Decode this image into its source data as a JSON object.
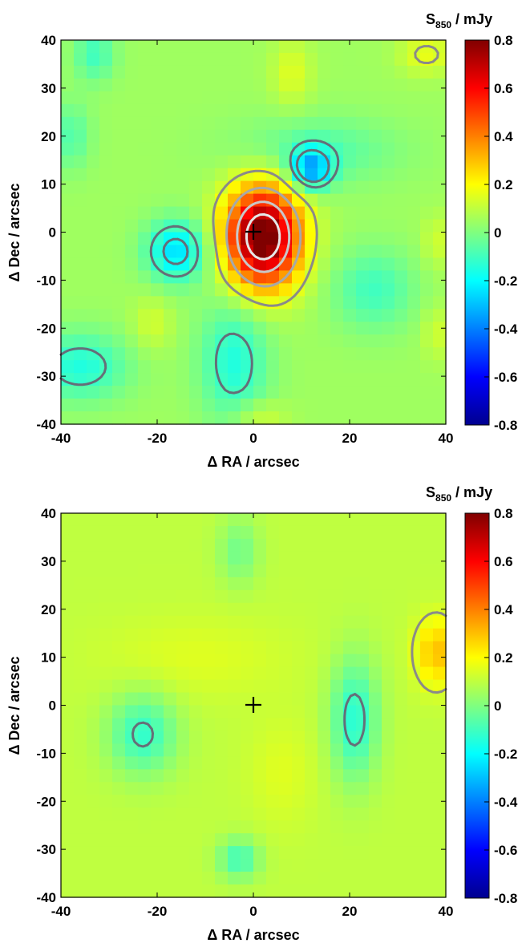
{
  "chart_data": [
    {
      "type": "heatmap",
      "xlabel": "Δ RA / arcsec",
      "ylabel": "Δ Dec / arcsec",
      "colorbar_label_main": "S",
      "colorbar_label_sub": "850",
      "colorbar_label_unit": " / mJy",
      "xlim": [
        -40,
        40
      ],
      "ylim": [
        -40,
        40
      ],
      "xticks": [
        -40,
        -20,
        0,
        20,
        40
      ],
      "yticks": [
        -40,
        -30,
        -20,
        -10,
        0,
        10,
        20,
        30,
        40
      ],
      "colorbar_range": [
        -0.8,
        0.8
      ],
      "colorbar_ticks": [
        0.8,
        0.6,
        0.4,
        0.2,
        0,
        -0.2,
        -0.4,
        -0.6,
        -0.8
      ],
      "grid": false,
      "colormap": "jet",
      "background_value": 0.05,
      "marker": {
        "x": 0,
        "y": 0,
        "symbol": "plus"
      },
      "features": [
        {
          "x": 2,
          "y": -1,
          "sx": 5.5,
          "sy": 7.5,
          "amp": 0.82
        },
        {
          "x": -16,
          "y": -4,
          "sx": 4.5,
          "sy": 4.5,
          "amp": -0.3
        },
        {
          "x": 12,
          "y": 13,
          "sx": 3,
          "sy": 3,
          "amp": -0.35
        },
        {
          "x": 13,
          "y": 17,
          "sx": 12,
          "sy": 5,
          "amp": -0.12
        },
        {
          "x": -33,
          "y": 37,
          "sx": 3,
          "sy": 4,
          "amp": -0.15
        },
        {
          "x": -38,
          "y": 20,
          "sx": 3,
          "sy": 5,
          "amp": -0.12
        },
        {
          "x": 25,
          "y": -12,
          "sx": 6,
          "sy": 6,
          "amp": -0.15
        },
        {
          "x": -4,
          "y": -27,
          "sx": 5,
          "sy": 9,
          "amp": -0.2
        },
        {
          "x": -36,
          "y": -28,
          "sx": 7,
          "sy": 5,
          "amp": -0.2
        },
        {
          "x": 8,
          "y": 33,
          "sx": 3,
          "sy": 5,
          "amp": 0.1
        },
        {
          "x": -21,
          "y": -19,
          "sx": 3,
          "sy": 4,
          "amp": 0.08
        },
        {
          "x": 1,
          "y": -38,
          "sx": 4,
          "sy": 2,
          "amp": 0.1
        },
        {
          "x": 36,
          "y": 37,
          "sx": 4,
          "sy": 3,
          "amp": 0.12
        },
        {
          "x": 38,
          "y": -2,
          "sx": 2,
          "sy": 4,
          "amp": 0.08
        },
        {
          "x": 38,
          "y": -21,
          "sx": 2,
          "sy": 4,
          "amp": 0.08
        }
      ]
    },
    {
      "type": "heatmap",
      "xlabel": "Δ RA / arcsec",
      "ylabel": "Δ Dec / arcsec",
      "colorbar_label_main": "S",
      "colorbar_label_sub": "850",
      "colorbar_label_unit": " / mJy",
      "xlim": [
        -40,
        40
      ],
      "ylim": [
        -40,
        40
      ],
      "xticks": [
        -40,
        -20,
        0,
        20,
        40
      ],
      "yticks": [
        -40,
        -30,
        -20,
        -10,
        0,
        10,
        20,
        30,
        40
      ],
      "colorbar_range": [
        -0.8,
        0.8
      ],
      "colorbar_ticks": [
        0.8,
        0.6,
        0.4,
        0.2,
        0,
        -0.2,
        -0.4,
        -0.6,
        -0.8
      ],
      "grid": false,
      "colormap": "jet",
      "background_value": 0.1,
      "marker": {
        "x": 0,
        "y": 0,
        "symbol": "plus"
      },
      "features": [
        {
          "x": -23,
          "y": -6,
          "sx": 5,
          "sy": 6,
          "amp": -0.22
        },
        {
          "x": 21,
          "y": -3,
          "sx": 3.5,
          "sy": 9,
          "amp": -0.24
        },
        {
          "x": -3,
          "y": 32,
          "sx": 3,
          "sy": 5,
          "amp": -0.12
        },
        {
          "x": -3,
          "y": -32,
          "sx": 3,
          "sy": 3,
          "amp": -0.2
        },
        {
          "x": 38,
          "y": 11,
          "sx": 3,
          "sy": 5,
          "amp": 0.2
        },
        {
          "x": -12,
          "y": 10,
          "sx": 14,
          "sy": 6,
          "amp": 0.05
        },
        {
          "x": 6,
          "y": -14,
          "sx": 5,
          "sy": 8,
          "amp": 0.05
        }
      ]
    }
  ]
}
